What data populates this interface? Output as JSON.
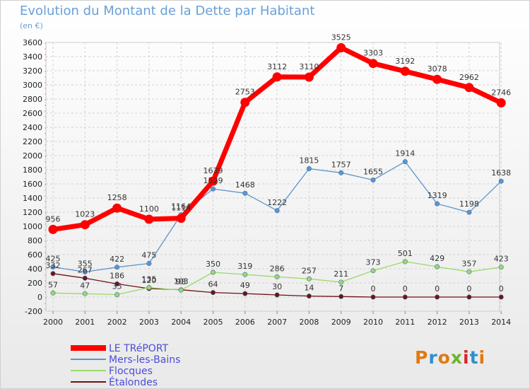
{
  "title": "Evolution du Montant de la Dette par Habitant",
  "subtitle": "(en €)",
  "logo": {
    "text": "Proxiti",
    "colors": [
      "#e07a10",
      "#2f8fd0",
      "#e07a10",
      "#6cb52d",
      "#d9262d",
      "#2f8fd0",
      "#e07a10"
    ]
  },
  "chart_data": {
    "type": "line",
    "x": [
      "2000",
      "2001",
      "2002",
      "2003",
      "2004",
      "2005",
      "2006",
      "2007",
      "2008",
      "2009",
      "2010",
      "2011",
      "2012",
      "2013",
      "2014"
    ],
    "ylim": [
      -200,
      3600
    ],
    "yticks": [
      -200,
      0,
      200,
      400,
      600,
      800,
      1000,
      1200,
      1400,
      1600,
      1800,
      2000,
      2200,
      2400,
      2600,
      2800,
      3000,
      3200,
      3400,
      3600
    ],
    "grid": true,
    "legend_position": "bottom-left",
    "series": [
      {
        "name": "LE TRéPORT",
        "color": "#ff0000",
        "values": [
          956,
          1023,
          1258,
          1100,
          1114,
          1639,
          2753,
          3112,
          3110,
          3525,
          3303,
          3192,
          3078,
          2962,
          2746
        ]
      },
      {
        "name": "Mers-les-Bains",
        "color": "#5b96cc",
        "values": [
          425,
          355,
          422,
          475,
          1164,
          1529,
          1468,
          1222,
          1815,
          1757,
          1655,
          1914,
          1319,
          1198,
          1638
        ]
      },
      {
        "name": "Flocques",
        "color": "#9ad96a",
        "values": [
          57,
          47,
          35,
          135,
          98,
          350,
          319,
          286,
          257,
          211,
          373,
          501,
          429,
          357,
          423
        ]
      },
      {
        "name": "Étalondes",
        "color": "#6e1212",
        "values": [
          332,
          267,
          186,
          120,
          103,
          64,
          49,
          30,
          14,
          7,
          0,
          0,
          0,
          0,
          0
        ]
      }
    ]
  }
}
